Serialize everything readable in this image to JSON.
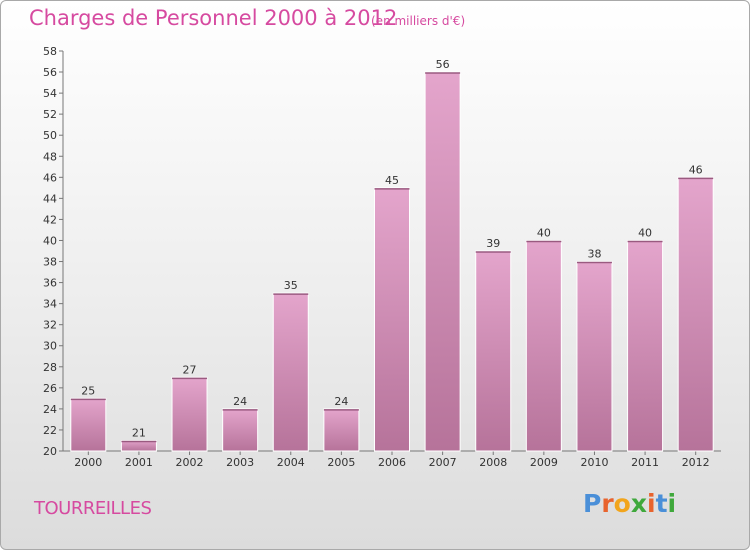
{
  "title": "Charges de Personnel 2000 à 2012",
  "subtitle": "(en milliers d'€)",
  "commune": "TOURREILLES",
  "logo": {
    "letters": [
      "P",
      "r",
      "o",
      "x",
      "i",
      "t",
      "i"
    ],
    "colors": [
      "#4a8fd8",
      "#e8632d",
      "#f2a51c",
      "#3fa83c",
      "#e8632d",
      "#4a8fd8",
      "#3fa83c"
    ]
  },
  "colors": {
    "accent": "#d64aa0",
    "bar_top": "#e4a5cc",
    "bar_bottom": "#b6739a"
  },
  "chart_data": {
    "type": "bar",
    "categories": [
      "2000",
      "2001",
      "2002",
      "2003",
      "2004",
      "2005",
      "2006",
      "2007",
      "2008",
      "2009",
      "2010",
      "2011",
      "2012"
    ],
    "values": [
      25,
      21,
      27,
      24,
      35,
      24,
      45,
      56,
      39,
      40,
      38,
      40,
      46
    ],
    "ylim": [
      20,
      58
    ],
    "yticks": [
      20,
      22,
      24,
      26,
      28,
      30,
      32,
      34,
      36,
      38,
      40,
      42,
      44,
      46,
      48,
      50,
      52,
      54,
      56,
      58
    ],
    "grid": false,
    "xlabel": "",
    "ylabel": ""
  }
}
